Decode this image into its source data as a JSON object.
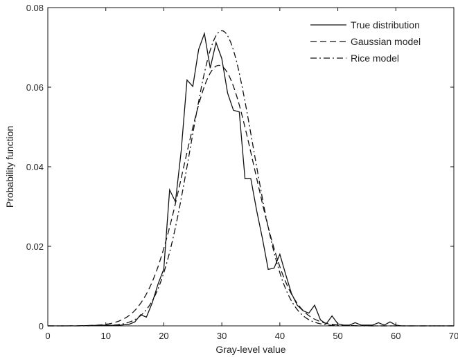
{
  "chart_data": {
    "type": "line",
    "title": "",
    "xlabel": "Gray-level value",
    "ylabel": "Probability function",
    "xlim": [
      0,
      70
    ],
    "ylim": [
      0,
      0.08
    ],
    "xticks": [
      0,
      10,
      20,
      30,
      40,
      50,
      60,
      70
    ],
    "yticks": [
      0,
      0.02,
      0.04,
      0.06,
      0.08
    ],
    "xtick_labels": [
      "0",
      "10",
      "20",
      "30",
      "40",
      "50",
      "60",
      "70"
    ],
    "ytick_labels": [
      "0",
      "0.02",
      "0.04",
      "0.06",
      "0.08"
    ],
    "grid": false,
    "legend_position": "top-right",
    "series": [
      {
        "name": "True distribution",
        "style": "solid",
        "color": "#111111",
        "x": [
          0,
          5,
          10,
          12,
          14,
          15,
          16,
          17,
          18,
          19,
          20,
          21,
          22,
          23,
          24,
          25,
          26,
          27,
          28,
          29,
          30,
          31,
          32,
          33,
          34,
          35,
          36,
          37,
          38,
          39,
          40,
          41,
          42,
          43,
          44,
          45,
          46,
          47,
          48,
          49,
          50,
          51,
          52,
          53,
          54,
          55,
          56,
          57,
          58,
          59,
          60,
          61,
          62,
          70
        ],
        "y": [
          0,
          0,
          0.0002,
          0.0001,
          0.0004,
          0.001,
          0.0028,
          0.0022,
          0.0058,
          0.0105,
          0.0143,
          0.0342,
          0.0312,
          0.044,
          0.0618,
          0.0602,
          0.0695,
          0.0735,
          0.0648,
          0.0712,
          0.0672,
          0.0585,
          0.0542,
          0.0538,
          0.037,
          0.037,
          0.029,
          0.022,
          0.0142,
          0.0145,
          0.018,
          0.013,
          0.0082,
          0.0052,
          0.0038,
          0.0032,
          0.0052,
          0.0015,
          0.0005,
          0.0025,
          0.0005,
          0.0002,
          0.0002,
          0.0008,
          0.0002,
          0.0002,
          0.0002,
          0.0008,
          0.0002,
          0.001,
          0.0002,
          0,
          0,
          0
        ]
      },
      {
        "name": "Gaussian model",
        "style": "dashed",
        "color": "#111111",
        "mean": 29.5,
        "sd": 6.1,
        "peak": 0.0655
      },
      {
        "name": "Rice model",
        "style": "dashdot",
        "color": "#111111",
        "mean": 30.0,
        "sd": 5.4,
        "peak": 0.0742
      }
    ]
  }
}
